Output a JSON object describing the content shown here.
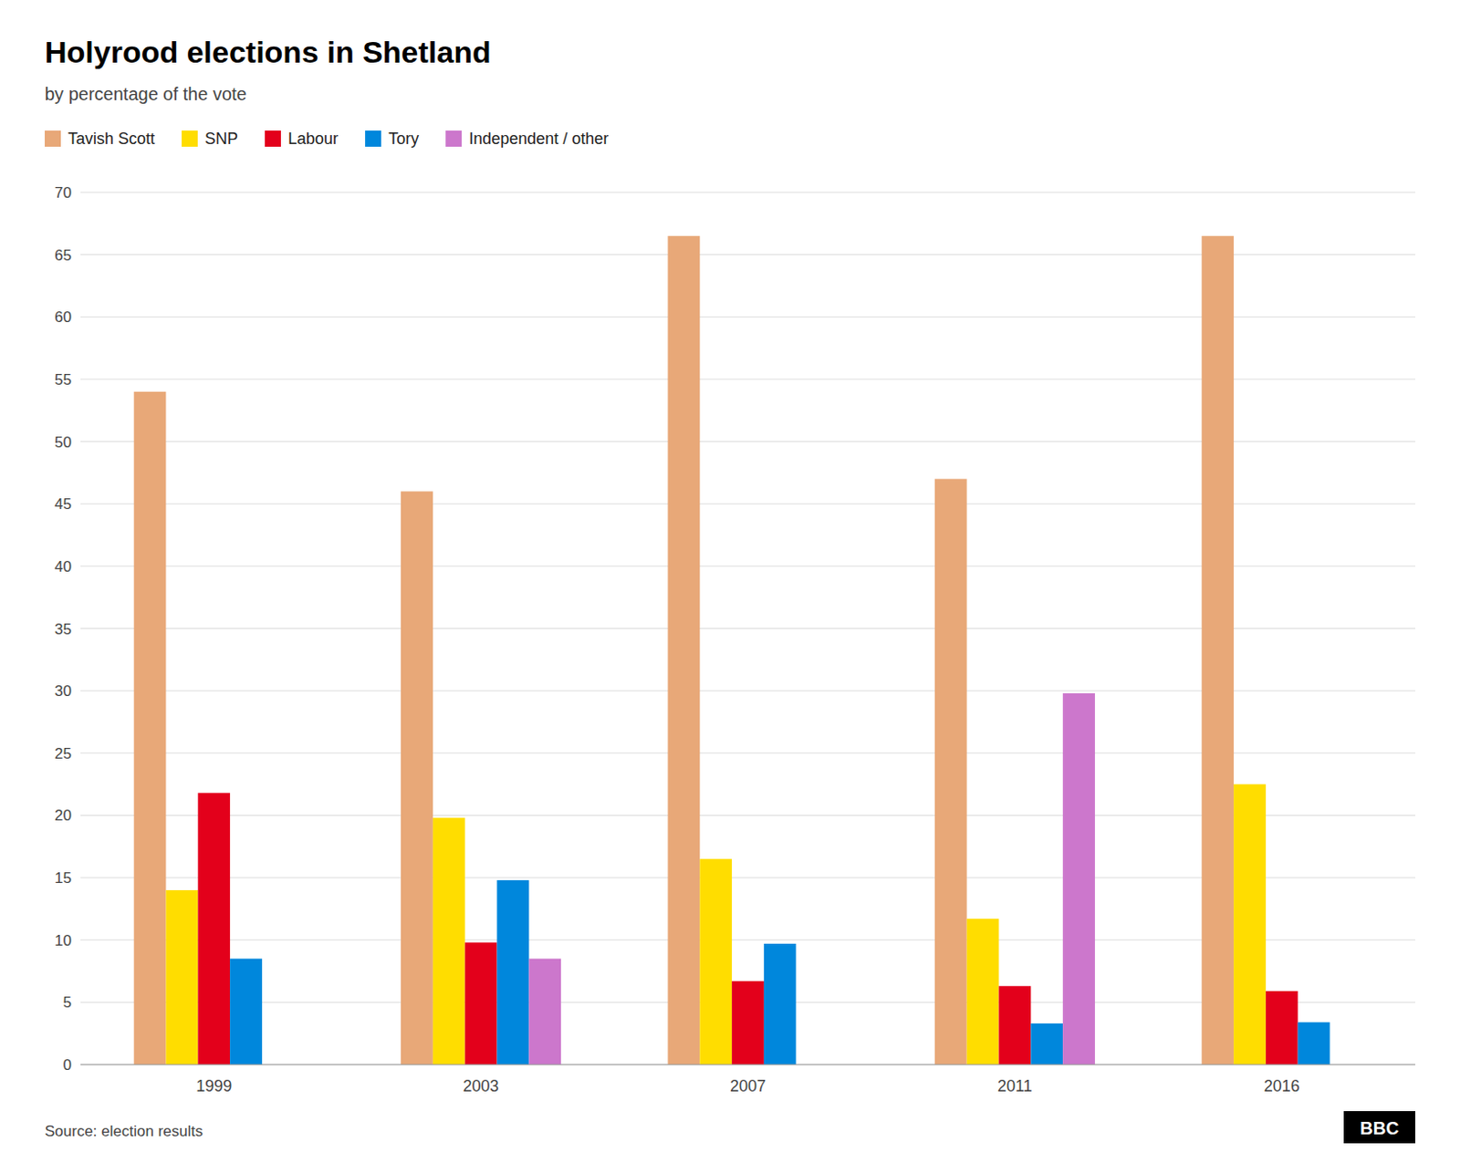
{
  "chart_data": {
    "type": "bar",
    "title": "Holyrood elections in Shetland",
    "subtitle": "by percentage of the vote",
    "source": "Source: election results",
    "annotations": [
      "BBC"
    ],
    "categories": [
      "1999",
      "2003",
      "2007",
      "2011",
      "2016"
    ],
    "series": [
      {
        "name": "Tavish Scott",
        "color": "#E8A878",
        "values": [
          54.0,
          46.0,
          66.5,
          47.0,
          66.5
        ]
      },
      {
        "name": "SNP",
        "color": "#FFDD00",
        "values": [
          14.0,
          19.8,
          16.5,
          11.7,
          22.5
        ]
      },
      {
        "name": "Labour",
        "color": "#E3001B",
        "values": [
          21.8,
          9.8,
          6.7,
          6.3,
          5.9
        ]
      },
      {
        "name": "Tory",
        "color": "#0087DC",
        "values": [
          8.5,
          14.8,
          9.7,
          3.3,
          3.4
        ]
      },
      {
        "name": "Independent / other",
        "color": "#CC77CC",
        "values": [
          0,
          8.5,
          0,
          29.8,
          0
        ]
      }
    ],
    "ylim": [
      0,
      70
    ],
    "yticks": [
      0,
      5,
      10,
      15,
      20,
      25,
      30,
      35,
      40,
      45,
      50,
      55,
      60,
      65,
      70
    ],
    "grid": true,
    "legend": "top"
  }
}
